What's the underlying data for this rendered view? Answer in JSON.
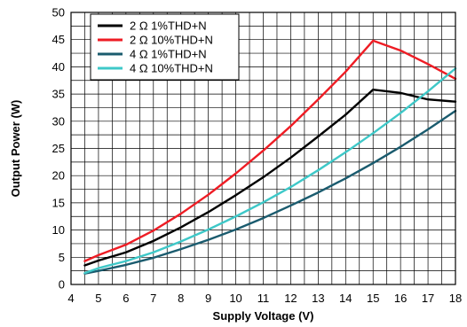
{
  "chart_data": {
    "type": "line",
    "title": "",
    "xlabel": "Supply Voltage (V)",
    "ylabel": "Output Power (W)",
    "xlim": [
      4,
      18
    ],
    "ylim": [
      0,
      50
    ],
    "x_ticks": [
      4,
      5,
      6,
      7,
      8,
      9,
      10,
      11,
      12,
      13,
      14,
      15,
      16,
      17,
      18
    ],
    "y_ticks": [
      0,
      5,
      10,
      15,
      20,
      25,
      30,
      35,
      40,
      45,
      50
    ],
    "x_minor_step": 0.5,
    "y_minor_step": 2.5,
    "grid": true,
    "legend": "top-left",
    "series": [
      {
        "name": "2 Ω 1%THD+N",
        "color": "#000000",
        "x": [
          4.5,
          5,
          6,
          7,
          8,
          9,
          10,
          11,
          12,
          13,
          14,
          15,
          16,
          17,
          18
        ],
        "y": [
          3.5,
          4.4,
          5.9,
          8.0,
          10.5,
          13.3,
          16.4,
          19.7,
          23.3,
          27.2,
          31.2,
          35.8,
          35.2,
          34.0,
          33.6
        ]
      },
      {
        "name": "2 Ω 10%THD+N",
        "color": "#ee1c24",
        "x": [
          4.5,
          5,
          6,
          7,
          8,
          9,
          10,
          11,
          12,
          13,
          14,
          15,
          16,
          17,
          18
        ],
        "y": [
          4.3,
          5.4,
          7.3,
          9.9,
          13.0,
          16.5,
          20.4,
          24.6,
          29.1,
          34.0,
          39.1,
          44.8,
          43.0,
          40.5,
          37.8
        ]
      },
      {
        "name": "4 Ω 1%THD+N",
        "color": "#1a5b6e",
        "x": [
          4.5,
          5,
          6,
          7,
          8,
          9,
          10,
          11,
          12,
          13,
          14,
          15,
          16,
          17,
          18
        ],
        "y": [
          2.0,
          2.5,
          3.6,
          4.9,
          6.5,
          8.2,
          10.1,
          12.2,
          14.5,
          16.9,
          19.5,
          22.3,
          25.3,
          28.5,
          31.9
        ]
      },
      {
        "name": "4 Ω 10%THD+N",
        "color": "#3ec8c8",
        "x": [
          4.5,
          5,
          6,
          7,
          8,
          9,
          10,
          11,
          12,
          13,
          14,
          15,
          16,
          17,
          18
        ],
        "y": [
          2.1,
          3.0,
          4.3,
          5.9,
          7.9,
          10.1,
          12.5,
          15.1,
          17.9,
          21.0,
          24.3,
          27.8,
          31.5,
          35.5,
          39.7
        ]
      }
    ]
  }
}
